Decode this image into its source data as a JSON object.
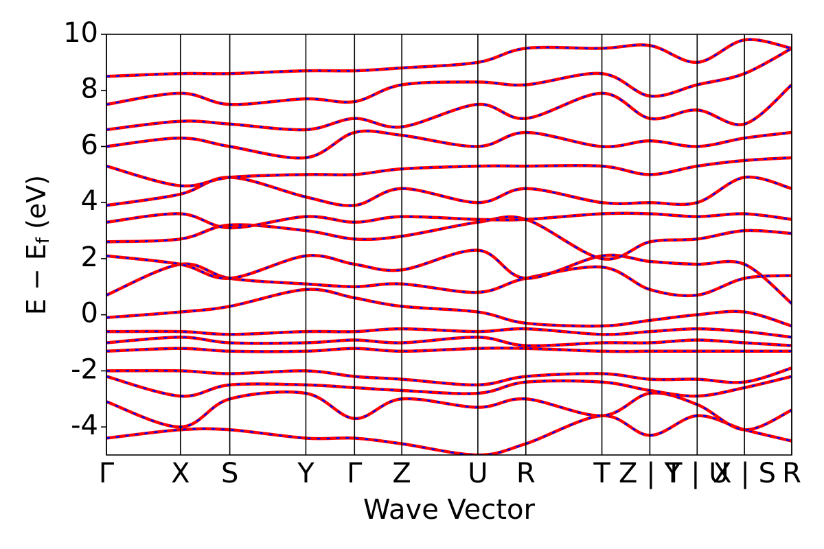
{
  "chart_data": {
    "type": "line",
    "xlabel": "Wave Vector",
    "ylabel": {
      "main": "E − E",
      "sub": "f",
      "unit": "(eV)"
    },
    "xlim": [
      0,
      1
    ],
    "ylim": [
      -5,
      10
    ],
    "yticks": [
      -4,
      -2,
      0,
      2,
      4,
      6,
      8,
      10
    ],
    "xticks": [
      {
        "value": 0,
        "label": "Γ"
      },
      {
        "value": 0.108,
        "label": "X"
      },
      {
        "value": 0.18,
        "label": "S"
      },
      {
        "value": 0.291,
        "label": "Y"
      },
      {
        "value": 0.362,
        "label": "Γ"
      },
      {
        "value": 0.431,
        "label": "Z"
      },
      {
        "value": 0.542,
        "label": "U"
      },
      {
        "value": 0.612,
        "label": "R"
      },
      {
        "value": 0.723,
        "label": "T"
      },
      {
        "value": 0.793,
        "label": "Z | Y"
      },
      {
        "value": 0.862,
        "label": "T | U"
      },
      {
        "value": 0.931,
        "label": "X | S"
      },
      {
        "value": 1,
        "label": "R"
      }
    ],
    "line_color": "#ff0000",
    "dash_color": "#0000ff",
    "x": [
      0,
      0.108,
      0.18,
      0.291,
      0.362,
      0.431,
      0.542,
      0.612,
      0.723,
      0.793,
      0.862,
      0.931,
      1
    ],
    "series": [
      {
        "values": [
          -4.4,
          -4.1,
          -4.1,
          -4.4,
          -4.4,
          -4.6,
          -5.0,
          -4.6,
          -3.6,
          -4.3,
          -3.6,
          -4.1,
          -4.5
        ]
      },
      {
        "values": [
          -3.1,
          -4.0,
          -3.0,
          -2.8,
          -3.7,
          -3.0,
          -3.3,
          -3.0,
          -3.6,
          -2.8,
          -3.2,
          -4.1,
          -3.4
        ]
      },
      {
        "values": [
          -2.2,
          -2.9,
          -2.5,
          -2.5,
          -2.6,
          -2.7,
          -2.8,
          -2.4,
          -2.4,
          -2.7,
          -2.9,
          -2.6,
          -2.2
        ]
      },
      {
        "values": [
          -2.0,
          -2.0,
          -2.1,
          -2.0,
          -2.2,
          -2.3,
          -2.5,
          -2.2,
          -2.1,
          -2.3,
          -2.3,
          -2.4,
          -1.9
        ]
      },
      {
        "values": [
          -1.3,
          -1.2,
          -1.3,
          -1.3,
          -1.2,
          -1.3,
          -1.2,
          -1.2,
          -1.3,
          -1.3,
          -1.3,
          -1.3,
          -1.3
        ]
      },
      {
        "values": [
          -1.0,
          -0.8,
          -1.0,
          -1.0,
          -0.9,
          -1.0,
          -0.8,
          -1.1,
          -1.0,
          -1.0,
          -0.9,
          -1.0,
          -1.1
        ]
      },
      {
        "values": [
          -0.6,
          -0.6,
          -0.7,
          -0.6,
          -0.6,
          -0.5,
          -0.6,
          -0.5,
          -0.7,
          -0.6,
          -0.5,
          -0.6,
          -0.8
        ]
      },
      {
        "values": [
          -0.1,
          0.1,
          0.3,
          0.9,
          0.6,
          0.3,
          0.1,
          -0.3,
          -0.4,
          -0.2,
          0.0,
          0.1,
          -0.4
        ]
      },
      {
        "values": [
          0.7,
          1.8,
          1.3,
          1.1,
          1.0,
          1.1,
          0.8,
          1.3,
          1.7,
          0.9,
          0.7,
          1.3,
          1.4
        ]
      },
      {
        "values": [
          2.1,
          1.8,
          1.3,
          2.1,
          1.8,
          1.6,
          2.3,
          1.3,
          2.1,
          1.9,
          1.8,
          1.8,
          0.4
        ]
      },
      {
        "values": [
          2.6,
          2.7,
          3.2,
          3.0,
          2.7,
          2.8,
          3.3,
          3.4,
          2.0,
          2.6,
          2.7,
          3.0,
          2.9
        ]
      },
      {
        "values": [
          3.3,
          3.6,
          3.1,
          3.5,
          3.3,
          3.5,
          3.4,
          3.4,
          3.6,
          3.6,
          3.5,
          3.6,
          3.4
        ]
      },
      {
        "values": [
          3.9,
          4.3,
          4.9,
          4.2,
          3.9,
          4.5,
          4.0,
          4.5,
          4.0,
          4.0,
          4.0,
          4.9,
          4.5
        ]
      },
      {
        "values": [
          5.3,
          4.6,
          4.9,
          5.0,
          5.0,
          5.2,
          5.3,
          5.3,
          5.3,
          5.0,
          5.3,
          5.5,
          5.6
        ]
      },
      {
        "values": [
          6.0,
          6.3,
          6.0,
          5.6,
          6.5,
          6.4,
          6.0,
          6.5,
          6.0,
          6.2,
          6.0,
          6.3,
          6.5
        ]
      },
      {
        "values": [
          6.6,
          6.9,
          6.8,
          6.6,
          7.0,
          6.7,
          7.5,
          7.0,
          7.9,
          7.0,
          7.3,
          6.8,
          8.2
        ]
      },
      {
        "values": [
          7.5,
          7.9,
          7.5,
          7.7,
          7.6,
          8.2,
          8.3,
          8.2,
          8.6,
          7.8,
          8.2,
          8.6,
          9.5
        ]
      },
      {
        "values": [
          8.5,
          8.6,
          8.6,
          8.7,
          8.7,
          8.8,
          9.0,
          9.5,
          9.5,
          9.6,
          9.0,
          9.8,
          9.5
        ]
      }
    ]
  }
}
